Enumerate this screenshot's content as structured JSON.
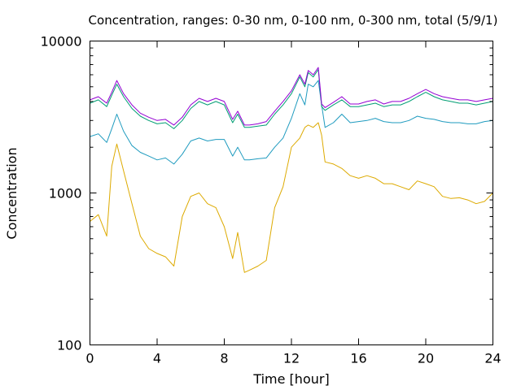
{
  "chart_data": {
    "type": "line",
    "title": "Concentration, ranges: 0-30 nm, 0-100 nm, 0-300 nm, total (5/9/1)",
    "xlabel": "Time [hour]",
    "ylabel": "Concentration",
    "xlim": [
      0,
      24
    ],
    "ylim": [
      100,
      10000
    ],
    "yscale": "log",
    "x_ticks": [
      0,
      4,
      8,
      12,
      16,
      20,
      24
    ],
    "x_tick_labels": [
      "0",
      "4",
      "8",
      "12",
      "16",
      "20",
      "24"
    ],
    "y_ticks": [
      100,
      1000,
      10000
    ],
    "y_tick_labels": [
      "100",
      "1000",
      "10000"
    ],
    "grid": false,
    "legend": "none",
    "x": [
      0,
      0.5,
      1,
      1.3,
      1.6,
      2,
      2.5,
      3,
      3.5,
      4,
      4.5,
      5,
      5.5,
      6,
      6.5,
      7,
      7.5,
      8,
      8.5,
      8.8,
      9.2,
      9.5,
      10,
      10.5,
      11,
      11.5,
      12,
      12.5,
      12.8,
      13,
      13.3,
      13.6,
      13.8,
      14,
      14.5,
      15,
      15.5,
      16,
      16.5,
      17,
      17.5,
      18,
      18.5,
      19,
      19.5,
      20,
      20.5,
      21,
      21.5,
      22,
      22.5,
      23,
      23.5,
      24
    ],
    "series": [
      {
        "color": "#ddaa00",
        "values": [
          650,
          720,
          520,
          1500,
          2100,
          1400,
          850,
          520,
          430,
          400,
          380,
          330,
          700,
          950,
          1000,
          850,
          800,
          600,
          370,
          550,
          300,
          310,
          330,
          360,
          800,
          1100,
          2000,
          2300,
          2700,
          2800,
          2700,
          2900,
          2400,
          1600,
          1550,
          1450,
          1300,
          1250,
          1300,
          1250,
          1150,
          1150,
          1100,
          1050,
          1200,
          1150,
          1100,
          950,
          920,
          930,
          900,
          850,
          880,
          1000
        ]
      },
      {
        "color": "#1f9bbf",
        "values": [
          2350,
          2450,
          2150,
          2650,
          3300,
          2550,
          2050,
          1850,
          1750,
          1650,
          1700,
          1550,
          1800,
          2200,
          2300,
          2200,
          2250,
          2250,
          1750,
          2000,
          1650,
          1650,
          1680,
          1700,
          2000,
          2300,
          3100,
          4500,
          3800,
          5200,
          5000,
          5500,
          3800,
          2700,
          2900,
          3300,
          2900,
          2950,
          3000,
          3100,
          2950,
          2900,
          2900,
          3000,
          3200,
          3100,
          3050,
          2950,
          2900,
          2900,
          2850,
          2850,
          2950,
          3000
        ]
      },
      {
        "color": "#009e73",
        "values": [
          3900,
          4100,
          3700,
          4400,
          5200,
          4300,
          3600,
          3200,
          3000,
          2850,
          2900,
          2650,
          3000,
          3600,
          4000,
          3800,
          4000,
          3800,
          2900,
          3300,
          2700,
          2700,
          2750,
          2800,
          3300,
          3800,
          4500,
          5800,
          5000,
          6200,
          5800,
          6500,
          3700,
          3500,
          3800,
          4100,
          3700,
          3700,
          3800,
          3900,
          3700,
          3800,
          3800,
          4000,
          4300,
          4600,
          4300,
          4100,
          4000,
          3900,
          3900,
          3800,
          3900,
          4000
        ]
      },
      {
        "color": "#9400d3",
        "values": [
          4100,
          4300,
          3900,
          4600,
          5500,
          4500,
          3800,
          3350,
          3150,
          3000,
          3050,
          2800,
          3150,
          3800,
          4200,
          4000,
          4200,
          4000,
          3050,
          3450,
          2800,
          2800,
          2850,
          2950,
          3450,
          4000,
          4700,
          6000,
          5200,
          6400,
          6000,
          6700,
          3850,
          3650,
          3950,
          4300,
          3850,
          3850,
          4000,
          4100,
          3850,
          4000,
          4000,
          4200,
          4500,
          4800,
          4500,
          4300,
          4200,
          4100,
          4100,
          4000,
          4100,
          4200
        ]
      }
    ]
  }
}
